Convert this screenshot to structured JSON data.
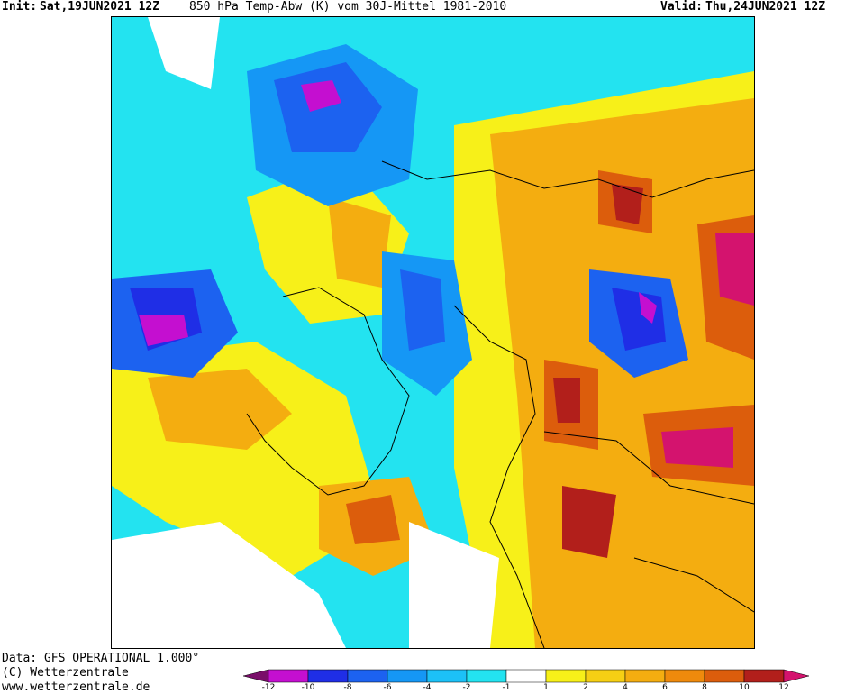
{
  "header": {
    "init_label": "Init:",
    "init_value": "Sat,19JUN2021 12Z",
    "field": "850 hPa Temp-Abw (K) vom 30J-Mittel 1981-2010",
    "valid_label": "Valid:",
    "valid_value": "Thu,24JUN2021 12Z"
  },
  "footer": {
    "data_source": "Data: GFS OPERATIONAL 1.000°",
    "copyright": "(C) Wetterzentrale",
    "website": "www.wetterzentrale.de"
  },
  "legend": {
    "ticks": [
      "-12",
      "-10",
      "-8",
      "-6",
      "-4",
      "-2",
      "-1",
      "1",
      "2",
      "4",
      "6",
      "8",
      "10",
      "12"
    ],
    "colors": [
      "#7a0e6a",
      "#c40fd0",
      "#1f2ee6",
      "#1c62f0",
      "#1597f5",
      "#1cc1f7",
      "#23e3f0",
      "#ffffff",
      "#f7f019",
      "#f6cf14",
      "#f4ad10",
      "#ef8a0c",
      "#dc5d0c",
      "#b21f1b",
      "#d4136e"
    ]
  },
  "colors": {
    "cold_extreme": "#c40fd0",
    "cold_strong": "#1f2ee6",
    "cold": "#1597f5",
    "cool": "#23e3f0",
    "neutral": "#ffffff",
    "warm": "#f7f019",
    "warmer": "#f4ad10",
    "hot": "#dc5d0c",
    "very_hot": "#b21f1b",
    "extreme_hot": "#d4136e"
  }
}
